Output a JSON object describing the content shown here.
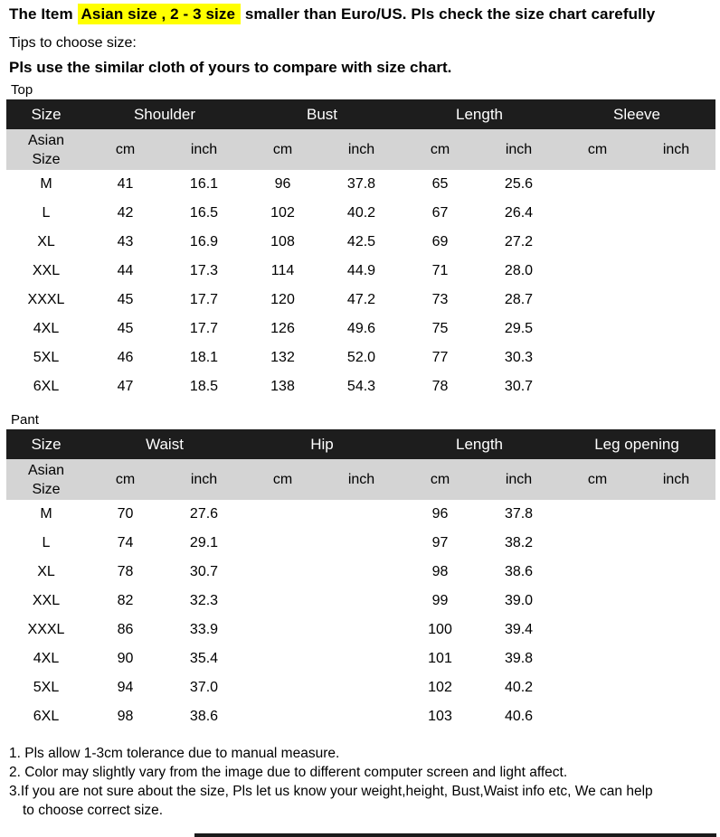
{
  "header": {
    "title_prefix": "The Item ",
    "title_highlight": "Asian size , 2 - 3 size",
    "title_suffix": " smaller than Euro/US. Pls check the size chart carefully",
    "tips": "Tips to choose size:",
    "advice": "Pls use the similar cloth of yours to compare with size chart."
  },
  "units": {
    "cm": "cm",
    "inch": "inch"
  },
  "size_label": "Asian\nSize",
  "tables": [
    {
      "section": "Top",
      "columns": [
        "Size",
        "Shoulder",
        "Bust",
        "Length",
        "Sleeve"
      ],
      "rows": [
        [
          "M",
          "41",
          "16.1",
          "96",
          "37.8",
          "65",
          "25.6",
          "",
          ""
        ],
        [
          "L",
          "42",
          "16.5",
          "102",
          "40.2",
          "67",
          "26.4",
          "",
          ""
        ],
        [
          "XL",
          "43",
          "16.9",
          "108",
          "42.5",
          "69",
          "27.2",
          "",
          ""
        ],
        [
          "XXL",
          "44",
          "17.3",
          "114",
          "44.9",
          "71",
          "28.0",
          "",
          ""
        ],
        [
          "XXXL",
          "45",
          "17.7",
          "120",
          "47.2",
          "73",
          "28.7",
          "",
          ""
        ],
        [
          "4XL",
          "45",
          "17.7",
          "126",
          "49.6",
          "75",
          "29.5",
          "",
          ""
        ],
        [
          "5XL",
          "46",
          "18.1",
          "132",
          "52.0",
          "77",
          "30.3",
          "",
          ""
        ],
        [
          "6XL",
          "47",
          "18.5",
          "138",
          "54.3",
          "78",
          "30.7",
          "",
          ""
        ]
      ]
    },
    {
      "section": "Pant",
      "columns": [
        "Size",
        "Waist",
        "Hip",
        "Length",
        "Leg opening"
      ],
      "rows": [
        [
          "M",
          "70",
          "27.6",
          "",
          "",
          "96",
          "37.8",
          "",
          ""
        ],
        [
          "L",
          "74",
          "29.1",
          "",
          "",
          "97",
          "38.2",
          "",
          ""
        ],
        [
          "XL",
          "78",
          "30.7",
          "",
          "",
          "98",
          "38.6",
          "",
          ""
        ],
        [
          "XXL",
          "82",
          "32.3",
          "",
          "",
          "99",
          "39.0",
          "",
          ""
        ],
        [
          "XXXL",
          "86",
          "33.9",
          "",
          "",
          "100",
          "39.4",
          "",
          ""
        ],
        [
          "4XL",
          "90",
          "35.4",
          "",
          "",
          "101",
          "39.8",
          "",
          ""
        ],
        [
          "5XL",
          "94",
          "37.0",
          "",
          "",
          "102",
          "40.2",
          "",
          ""
        ],
        [
          "6XL",
          "98",
          "38.6",
          "",
          "",
          "103",
          "40.6",
          "",
          ""
        ]
      ]
    }
  ],
  "notes": [
    "1. Pls allow 1-3cm tolerance due to manual measure.",
    "2. Color may slightly vary from the image due to different computer screen and light affect.",
    "3.If you are not sure about the size, Pls let us know your weight,height, Bust,Waist info etc, We can help",
    "to choose correct size."
  ],
  "colors": {
    "highlight": "#ffff00",
    "header_bg": "#1d1d1d",
    "subheader_bg": "#d4d4d4"
  }
}
